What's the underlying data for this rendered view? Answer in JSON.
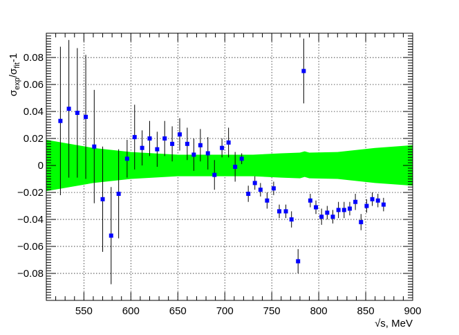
{
  "chart_data": {
    "type": "scatter",
    "title": "",
    "xlabel": "√s, MeV",
    "ylabel": {
      "base": "σ",
      "sub1": "exp",
      "mid": "/σ",
      "sub2": "fit",
      "tail": "-1"
    },
    "xlim": [
      510,
      900
    ],
    "ylim": [
      -0.1,
      0.098
    ],
    "x_ticks": [
      550,
      600,
      650,
      700,
      750,
      800,
      850,
      900
    ],
    "y_ticks": [
      -0.08,
      -0.06,
      -0.04,
      -0.02,
      0,
      0.02,
      0.04,
      0.06,
      0.08
    ],
    "y_tick_labels": [
      "−0.08",
      "−0.06",
      "−0.04",
      "−0.02",
      "0",
      "0.02",
      "0.04",
      "0.06",
      "0.08"
    ],
    "grid": true,
    "colors": {
      "points": "#0000ff",
      "band": "#00ff00",
      "errorbars": "#000000"
    },
    "band": {
      "x": [
        510,
        560,
        600,
        650,
        700,
        730,
        760,
        780,
        785,
        790,
        820,
        860,
        900
      ],
      "low": [
        -0.019,
        -0.013,
        -0.01,
        -0.008,
        -0.008,
        -0.008,
        -0.009,
        -0.0095,
        -0.0085,
        -0.0095,
        -0.01,
        -0.013,
        -0.015
      ],
      "high": [
        0.019,
        0.013,
        0.01,
        0.008,
        0.008,
        0.008,
        0.009,
        0.0095,
        0.0105,
        0.0095,
        0.01,
        0.013,
        0.015
      ]
    },
    "series": [
      {
        "points": [
          {
            "x": 525,
            "y": 0.033,
            "err": 0.055
          },
          {
            "x": 534,
            "y": 0.042,
            "err": 0.051
          },
          {
            "x": 543,
            "y": 0.039,
            "err": 0.048
          },
          {
            "x": 552,
            "y": 0.036,
            "err": 0.046
          },
          {
            "x": 561,
            "y": 0.014,
            "err": 0.042
          },
          {
            "x": 570,
            "y": -0.025,
            "err": 0.039
          },
          {
            "x": 579,
            "y": -0.052,
            "err": 0.036
          },
          {
            "x": 587,
            "y": -0.021,
            "err": 0.033
          },
          {
            "x": 596,
            "y": 0.005,
            "err": 0.014
          },
          {
            "x": 604,
            "y": 0.021,
            "err": 0.024
          },
          {
            "x": 612,
            "y": 0.013,
            "err": 0.013
          },
          {
            "x": 620,
            "y": 0.02,
            "err": 0.013
          },
          {
            "x": 628,
            "y": 0.012,
            "err": 0.013
          },
          {
            "x": 636,
            "y": 0.02,
            "err": 0.013
          },
          {
            "x": 644,
            "y": 0.016,
            "err": 0.013
          },
          {
            "x": 652,
            "y": 0.023,
            "err": 0.012
          },
          {
            "x": 660,
            "y": 0.016,
            "err": 0.012
          },
          {
            "x": 667,
            "y": 0.008,
            "err": 0.012
          },
          {
            "x": 674,
            "y": 0.015,
            "err": 0.012
          },
          {
            "x": 682,
            "y": 0.009,
            "err": 0.012
          },
          {
            "x": 689,
            "y": -0.007,
            "err": 0.011
          },
          {
            "x": 697,
            "y": 0.013,
            "err": 0.007
          },
          {
            "x": 704,
            "y": 0.017,
            "err": 0.011
          },
          {
            "x": 711,
            "y": -0.001,
            "err": 0.011
          },
          {
            "x": 718,
            "y": 0.005,
            "err": 0.004
          },
          {
            "x": 725,
            "y": -0.021,
            "err": 0.006
          },
          {
            "x": 732,
            "y": -0.013,
            "err": 0.005
          },
          {
            "x": 738,
            "y": -0.018,
            "err": 0.005
          },
          {
            "x": 745,
            "y": -0.026,
            "err": 0.006
          },
          {
            "x": 752,
            "y": -0.017,
            "err": 0.005
          },
          {
            "x": 758,
            "y": -0.034,
            "err": 0.005
          },
          {
            "x": 765,
            "y": -0.034,
            "err": 0.005
          },
          {
            "x": 771,
            "y": -0.04,
            "err": 0.006
          },
          {
            "x": 778,
            "y": -0.071,
            "err": 0.009
          },
          {
            "x": 784,
            "y": 0.07,
            "err": 0.024
          },
          {
            "x": 791,
            "y": -0.026,
            "err": 0.005
          },
          {
            "x": 797,
            "y": -0.031,
            "err": 0.005
          },
          {
            "x": 803,
            "y": -0.038,
            "err": 0.006
          },
          {
            "x": 809,
            "y": -0.035,
            "err": 0.005
          },
          {
            "x": 815,
            "y": -0.038,
            "err": 0.005
          },
          {
            "x": 821,
            "y": -0.033,
            "err": 0.006
          },
          {
            "x": 827,
            "y": -0.033,
            "err": 0.006
          },
          {
            "x": 833,
            "y": -0.032,
            "err": 0.005
          },
          {
            "x": 839,
            "y": -0.027,
            "err": 0.006
          },
          {
            "x": 845,
            "y": -0.042,
            "err": 0.006
          },
          {
            "x": 851,
            "y": -0.03,
            "err": 0.005
          },
          {
            "x": 857,
            "y": -0.025,
            "err": 0.005
          },
          {
            "x": 863,
            "y": -0.026,
            "err": 0.005
          },
          {
            "x": 869,
            "y": -0.029,
            "err": 0.005
          }
        ]
      }
    ]
  }
}
